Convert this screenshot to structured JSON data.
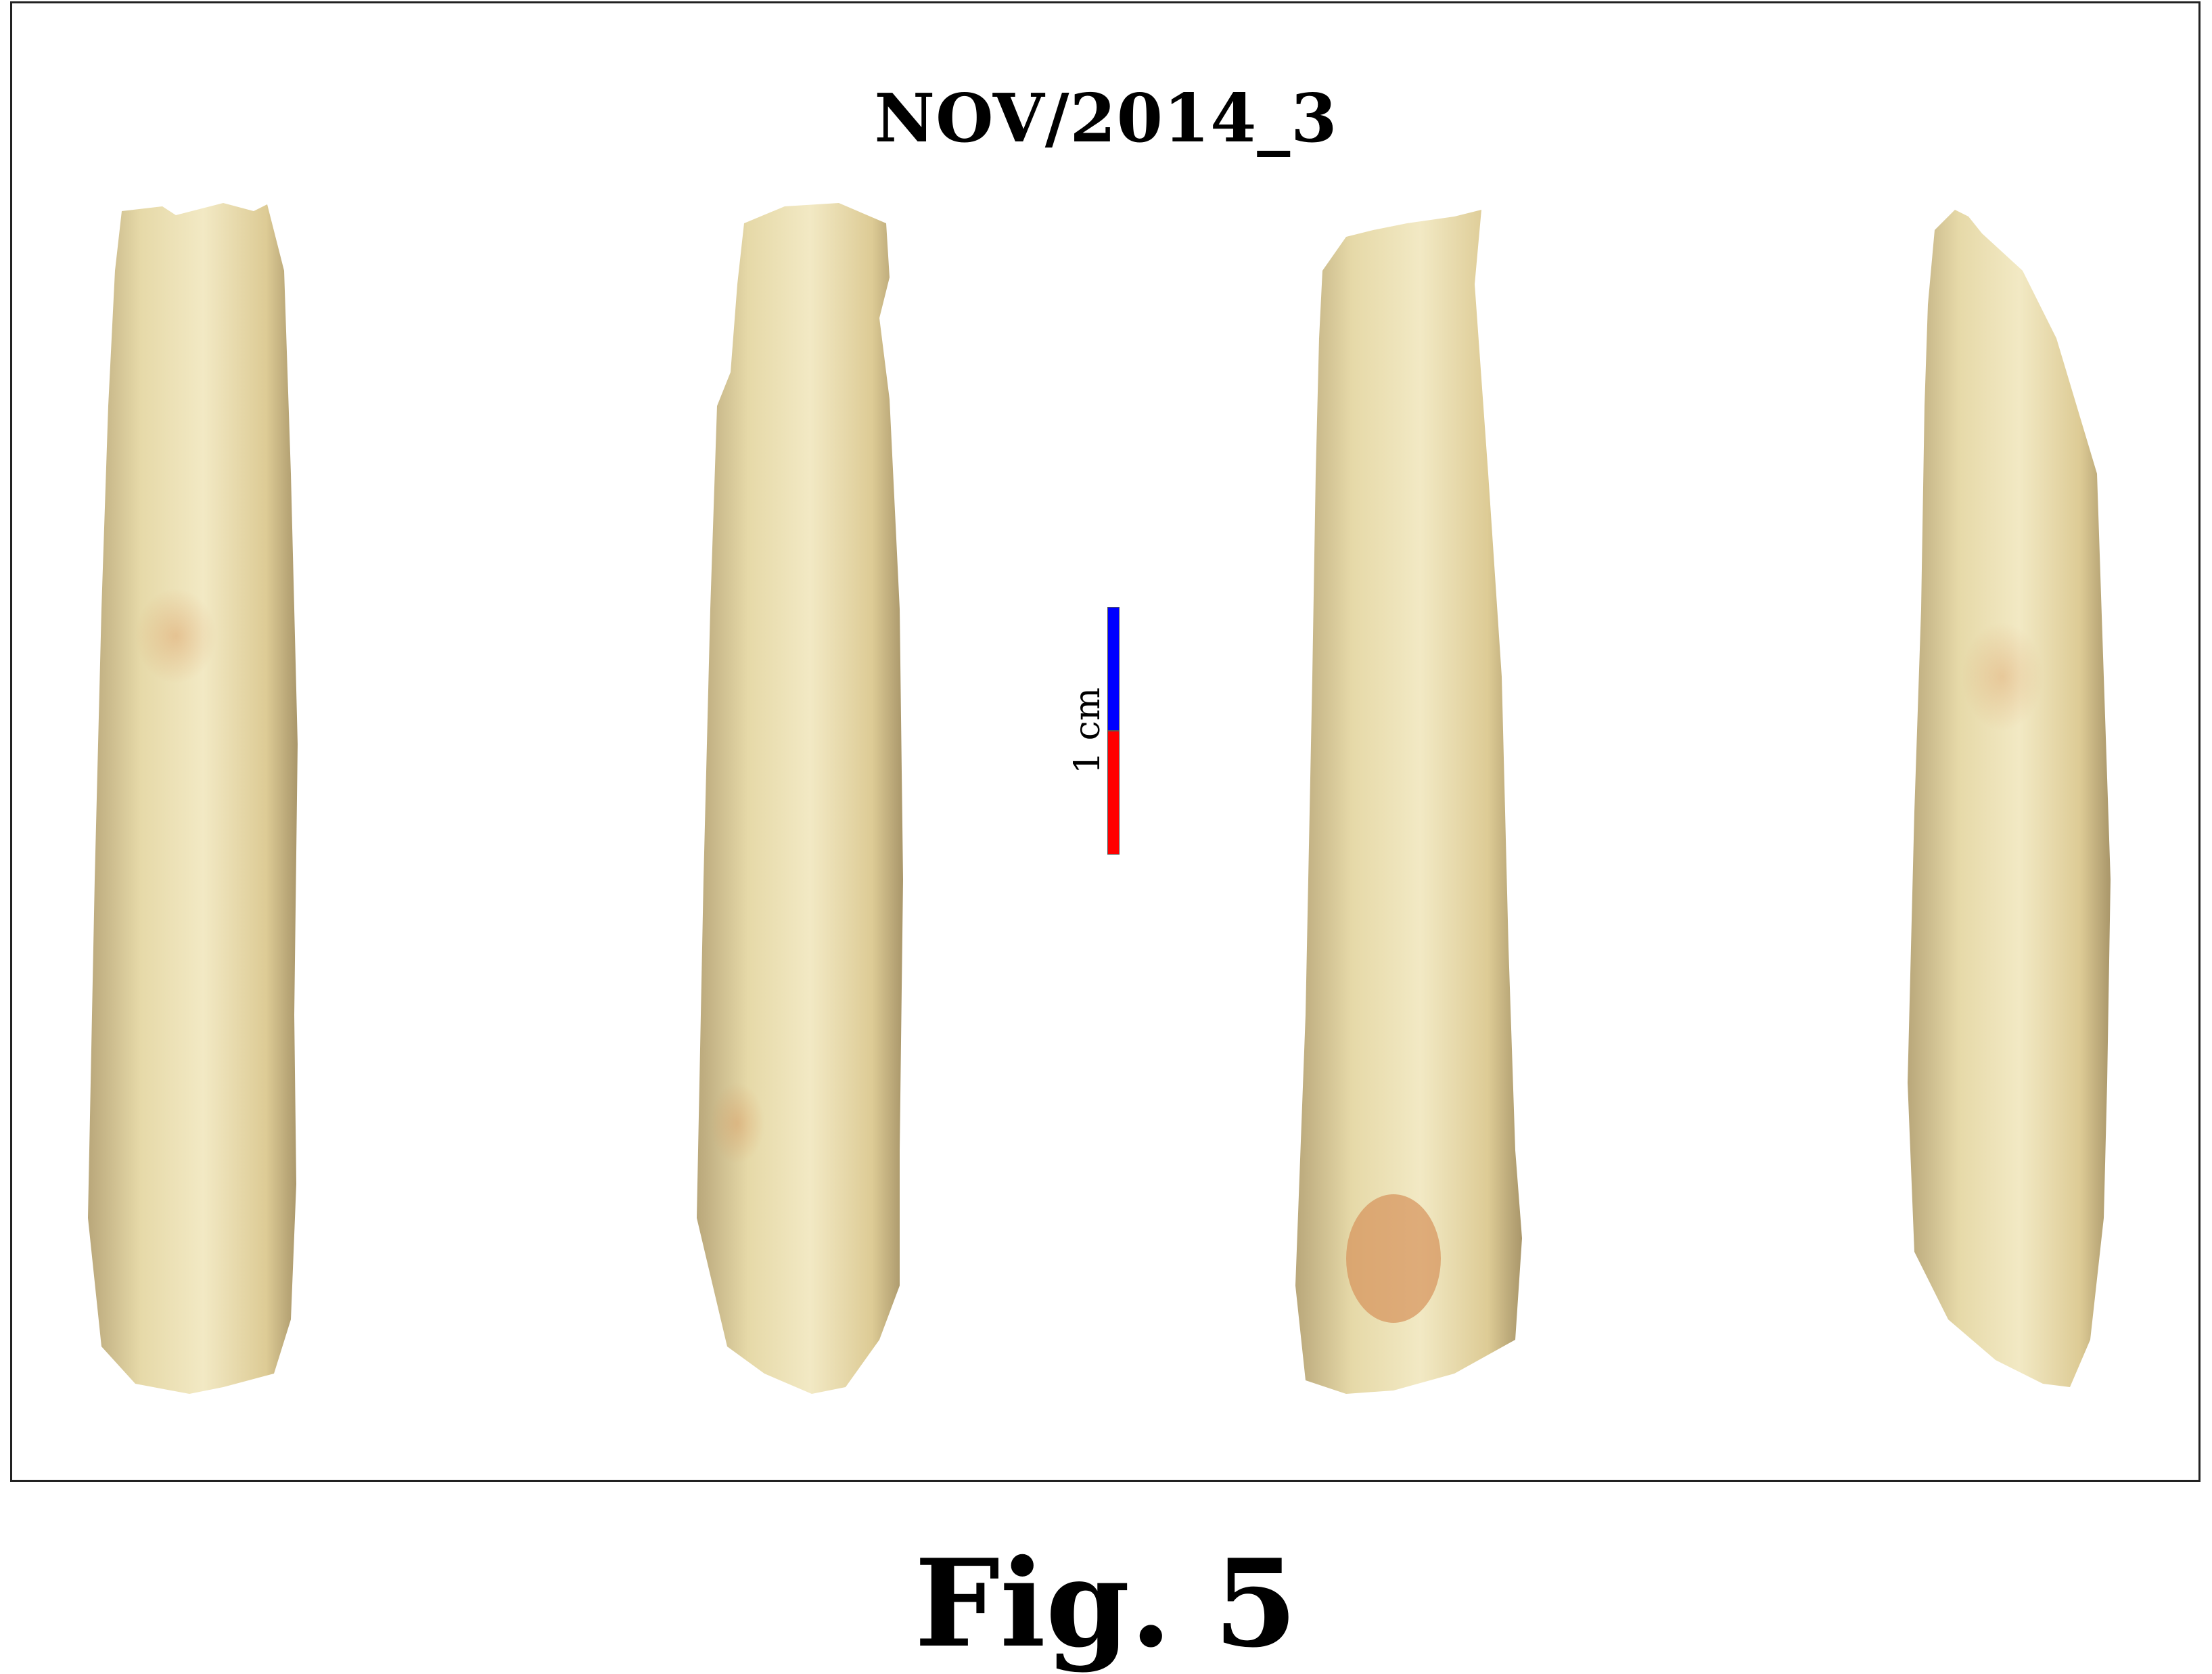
{
  "figure": {
    "specimen_label": "NOV/2014_3",
    "caption": "Fig. 5",
    "scale_bar": {
      "label": "1 cm",
      "colors": [
        "#0000ff",
        "#ff0000"
      ]
    },
    "photos": [
      {
        "view": "specimen-view-1"
      },
      {
        "view": "specimen-view-2"
      },
      {
        "view": "specimen-view-3"
      },
      {
        "view": "specimen-view-4"
      }
    ],
    "specimen_color": "#e8dcaa"
  }
}
